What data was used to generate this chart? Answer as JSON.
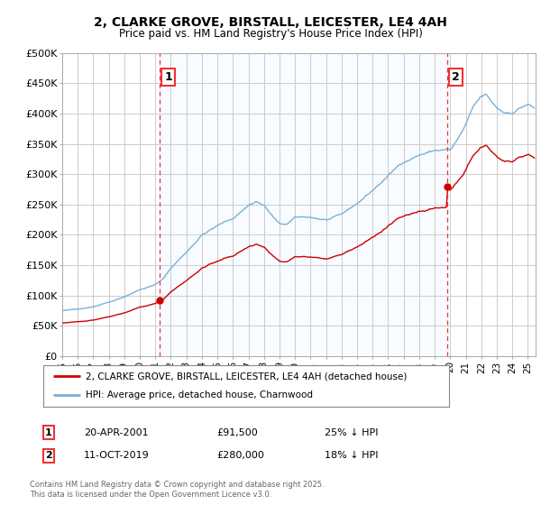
{
  "title": "2, CLARKE GROVE, BIRSTALL, LEICESTER, LE4 4AH",
  "subtitle": "Price paid vs. HM Land Registry's House Price Index (HPI)",
  "ylim": [
    0,
    500000
  ],
  "yticks": [
    0,
    50000,
    100000,
    150000,
    200000,
    250000,
    300000,
    350000,
    400000,
    450000,
    500000
  ],
  "ytick_labels": [
    "£0",
    "£50K",
    "£100K",
    "£150K",
    "£200K",
    "£250K",
    "£300K",
    "£350K",
    "£400K",
    "£450K",
    "£500K"
  ],
  "background_color": "#ffffff",
  "plot_bg_color": "#ffffff",
  "grid_color": "#cccccc",
  "hpi_color": "#7ab0d8",
  "property_color": "#cc0000",
  "vline_color": "#ee3333",
  "fill_color": "#ddeeff",
  "purchase1_year": 2001.3,
  "purchase1_price": 91500,
  "purchase1_label": "1",
  "purchase2_year": 2019.78,
  "purchase2_price": 280000,
  "purchase2_label": "2",
  "legend_property": "2, CLARKE GROVE, BIRSTALL, LEICESTER, LE4 4AH (detached house)",
  "legend_hpi": "HPI: Average price, detached house, Charnwood",
  "note1_label": "1",
  "note1_date": "20-APR-2001",
  "note1_price": "£91,500",
  "note1_hpi": "25% ↓ HPI",
  "note2_label": "2",
  "note2_date": "11-OCT-2019",
  "note2_price": "£280,000",
  "note2_hpi": "18% ↓ HPI",
  "copyright": "Contains HM Land Registry data © Crown copyright and database right 2025.\nThis data is licensed under the Open Government Licence v3.0.",
  "xmin": 1995.0,
  "xmax": 2025.5
}
